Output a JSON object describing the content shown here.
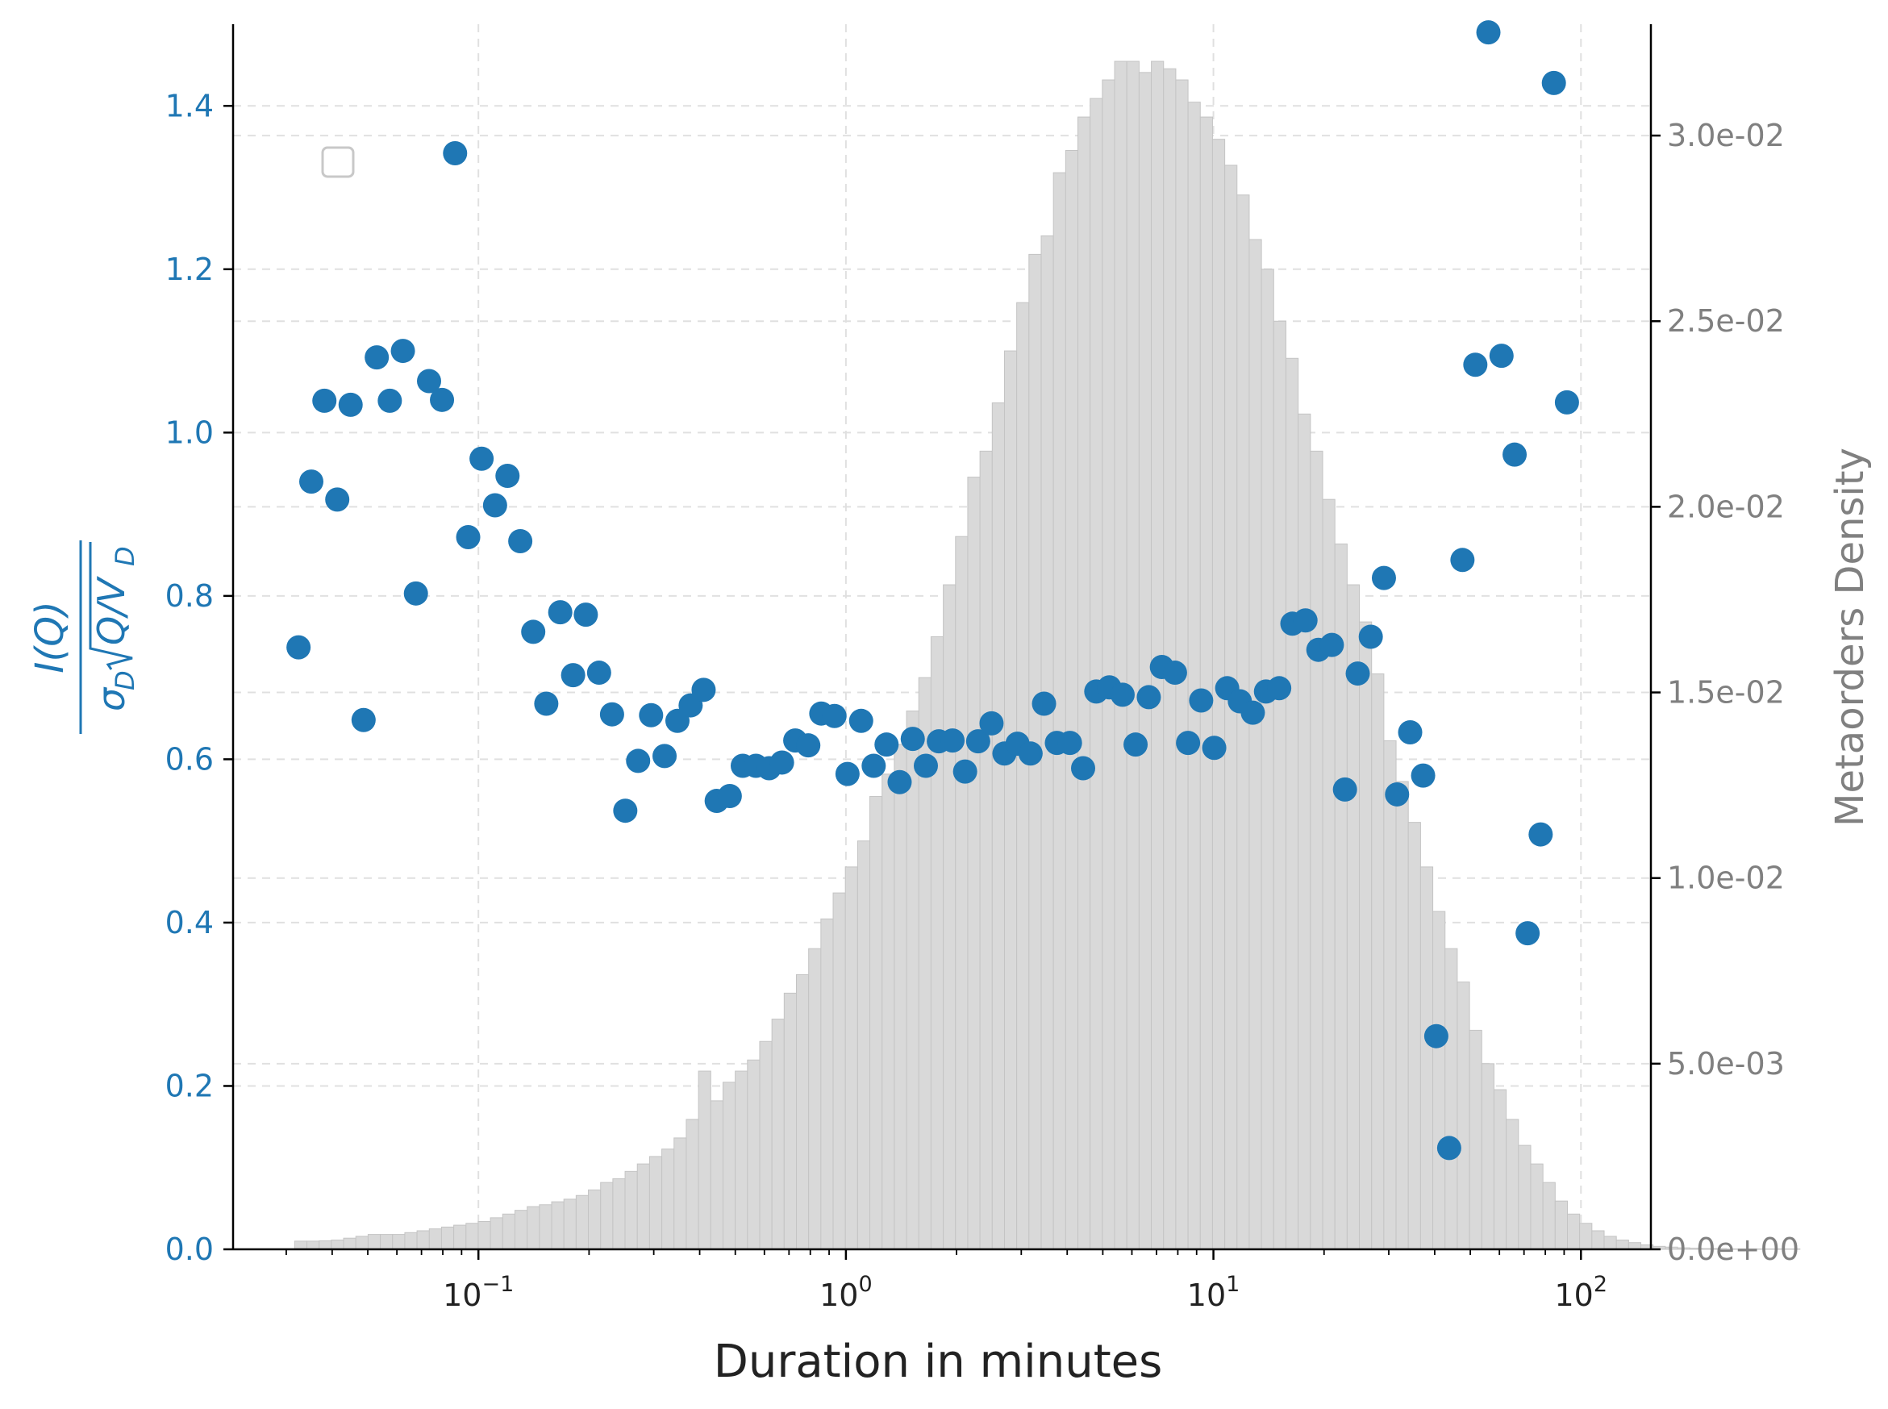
{
  "chart_data": {
    "type": "scatter",
    "xlabel": "Duration in minutes",
    "x_scale": "log",
    "xlim": [
      0.0215,
      155
    ],
    "x_ticks": [
      {
        "value": 0.1,
        "base": "10",
        "exp": "−1"
      },
      {
        "value": 1,
        "base": "10",
        "exp": "0"
      },
      {
        "value": 10,
        "base": "10",
        "exp": "1"
      },
      {
        "value": 100,
        "base": "10",
        "exp": "2"
      }
    ],
    "grid": true,
    "legend": "top-left (empty)",
    "colors": {
      "scatter": "#1f77b4",
      "histogram": "#d9d9d9",
      "right_axis": "#808080",
      "grid": "#e0e0e0"
    },
    "left_axis": {
      "ylabel_numerator": "I(Q)",
      "ylabel_sigma": "σ",
      "ylabel_sub": "D",
      "ylabel_radicand_Q": "Q/V",
      "ylim": [
        0,
        1.5
      ],
      "ticks": [
        "0.0",
        "0.2",
        "0.4",
        "0.6",
        "0.8",
        "1.0",
        "1.2",
        "1.4"
      ],
      "tick_values": [
        0,
        0.2,
        0.4,
        0.6,
        0.8,
        1.0,
        1.2,
        1.4
      ]
    },
    "right_axis": {
      "ylabel": "Metaorders Density",
      "ylim": [
        0,
        0.033
      ],
      "ticks": [
        "0.0e+00",
        "5.0e-03",
        "1.0e-02",
        "1.5e-02",
        "2.0e-02",
        "2.5e-02",
        "3.0e-02"
      ],
      "tick_values": [
        0,
        0.005,
        0.01,
        0.015,
        0.02,
        0.025,
        0.03
      ]
    },
    "series": [
      {
        "kind": "scatter",
        "points": [
          [
            0.0324,
            0.737
          ],
          [
            0.0351,
            0.94
          ],
          [
            0.0381,
            1.039
          ],
          [
            0.0413,
            0.918
          ],
          [
            0.0449,
            1.034
          ],
          [
            0.0487,
            0.648
          ],
          [
            0.0529,
            1.092
          ],
          [
            0.0574,
            1.039
          ],
          [
            0.0623,
            1.1
          ],
          [
            0.0676,
            0.803
          ],
          [
            0.0734,
            1.063
          ],
          [
            0.0796,
            1.04
          ],
          [
            0.0864,
            1.342
          ],
          [
            0.0938,
            0.872
          ],
          [
            0.102,
            0.968
          ],
          [
            0.111,
            0.911
          ],
          [
            0.12,
            0.947
          ],
          [
            0.13,
            0.867
          ],
          [
            0.141,
            0.756
          ],
          [
            0.153,
            0.668
          ],
          [
            0.167,
            0.78
          ],
          [
            0.181,
            0.703
          ],
          [
            0.196,
            0.777
          ],
          [
            0.213,
            0.706
          ],
          [
            0.231,
            0.655
          ],
          [
            0.251,
            0.537
          ],
          [
            0.272,
            0.598
          ],
          [
            0.295,
            0.654
          ],
          [
            0.321,
            0.604
          ],
          [
            0.348,
            0.647
          ],
          [
            0.378,
            0.666
          ],
          [
            0.41,
            0.685
          ],
          [
            0.445,
            0.549
          ],
          [
            0.483,
            0.555
          ],
          [
            0.524,
            0.592
          ],
          [
            0.569,
            0.592
          ],
          [
            0.618,
            0.589
          ],
          [
            0.67,
            0.596
          ],
          [
            0.728,
            0.623
          ],
          [
            0.79,
            0.617
          ],
          [
            0.857,
            0.656
          ],
          [
            0.931,
            0.653
          ],
          [
            1.01,
            0.582
          ],
          [
            1.1,
            0.647
          ],
          [
            1.19,
            0.592
          ],
          [
            1.29,
            0.618
          ],
          [
            1.4,
            0.572
          ],
          [
            1.52,
            0.625
          ],
          [
            1.65,
            0.592
          ],
          [
            1.79,
            0.622
          ],
          [
            1.95,
            0.623
          ],
          [
            2.11,
            0.585
          ],
          [
            2.29,
            0.622
          ],
          [
            2.49,
            0.644
          ],
          [
            2.7,
            0.607
          ],
          [
            2.93,
            0.619
          ],
          [
            3.18,
            0.607
          ],
          [
            3.46,
            0.668
          ],
          [
            3.75,
            0.62
          ],
          [
            4.07,
            0.62
          ],
          [
            4.42,
            0.589
          ],
          [
            4.8,
            0.683
          ],
          [
            5.21,
            0.688
          ],
          [
            5.66,
            0.679
          ],
          [
            6.14,
            0.618
          ],
          [
            6.67,
            0.676
          ],
          [
            7.24,
            0.713
          ],
          [
            7.86,
            0.706
          ],
          [
            8.53,
            0.62
          ],
          [
            9.26,
            0.672
          ],
          [
            10.05,
            0.614
          ],
          [
            10.9,
            0.687
          ],
          [
            11.8,
            0.671
          ],
          [
            12.8,
            0.657
          ],
          [
            13.9,
            0.683
          ],
          [
            15.1,
            0.687
          ],
          [
            16.4,
            0.766
          ],
          [
            17.8,
            0.77
          ],
          [
            19.3,
            0.734
          ],
          [
            21.0,
            0.74
          ],
          [
            22.8,
            0.563
          ],
          [
            24.7,
            0.705
          ],
          [
            26.8,
            0.75
          ],
          [
            29.1,
            0.822
          ],
          [
            31.6,
            0.557
          ],
          [
            34.3,
            0.633
          ],
          [
            37.2,
            0.58
          ],
          [
            40.4,
            0.261
          ],
          [
            43.8,
            0.124
          ],
          [
            47.6,
            0.844
          ],
          [
            51.6,
            1.083
          ],
          [
            56.0,
            1.49
          ],
          [
            60.8,
            1.094
          ],
          [
            66.0,
            0.973
          ],
          [
            71.6,
            0.387
          ],
          [
            77.7,
            0.508
          ],
          [
            84.4,
            1.428
          ],
          [
            91.6,
            1.037
          ]
        ]
      }
    ],
    "histogram": {
      "kind": "bar",
      "log_x_start": -1.5,
      "log_bin_width": 0.0333,
      "density": [
        0.00022,
        0.00022,
        0.00023,
        0.00025,
        0.0003,
        0.00035,
        0.0004,
        0.0004,
        0.0004,
        0.00045,
        0.0005,
        0.00055,
        0.0006,
        0.00065,
        0.0007,
        0.00075,
        0.00085,
        0.00095,
        0.00105,
        0.00115,
        0.0012,
        0.00128,
        0.00135,
        0.00145,
        0.0016,
        0.0018,
        0.0019,
        0.0021,
        0.0023,
        0.0025,
        0.0027,
        0.003,
        0.0035,
        0.0048,
        0.004,
        0.0045,
        0.0048,
        0.0051,
        0.0056,
        0.0062,
        0.0069,
        0.0074,
        0.0081,
        0.0089,
        0.0096,
        0.0103,
        0.011,
        0.0122,
        0.0128,
        0.0136,
        0.0145,
        0.0154,
        0.0165,
        0.0179,
        0.0192,
        0.0208,
        0.0215,
        0.0228,
        0.0242,
        0.0255,
        0.0268,
        0.0273,
        0.029,
        0.0296,
        0.0305,
        0.031,
        0.0315,
        0.032,
        0.032,
        0.0317,
        0.032,
        0.0318,
        0.0315,
        0.0309,
        0.0305,
        0.0299,
        0.0292,
        0.0284,
        0.0272,
        0.0264,
        0.025,
        0.024,
        0.0225,
        0.0215,
        0.0202,
        0.019,
        0.0179,
        0.0169,
        0.0155,
        0.0137,
        0.0126,
        0.0115,
        0.0103,
        0.0091,
        0.0081,
        0.0072,
        0.0059,
        0.005,
        0.0043,
        0.0035,
        0.0028,
        0.0023,
        0.0018,
        0.0013,
        0.00095,
        0.0007,
        0.0005,
        0.00035,
        0.00025,
        0.00018,
        0.00012,
        8e-05,
        6e-05,
        4e-05,
        3e-05,
        2e-05,
        2e-05,
        1e-05,
        1e-05,
        1e-05,
        1e-05,
        1e-05,
        1e-05
      ]
    }
  }
}
